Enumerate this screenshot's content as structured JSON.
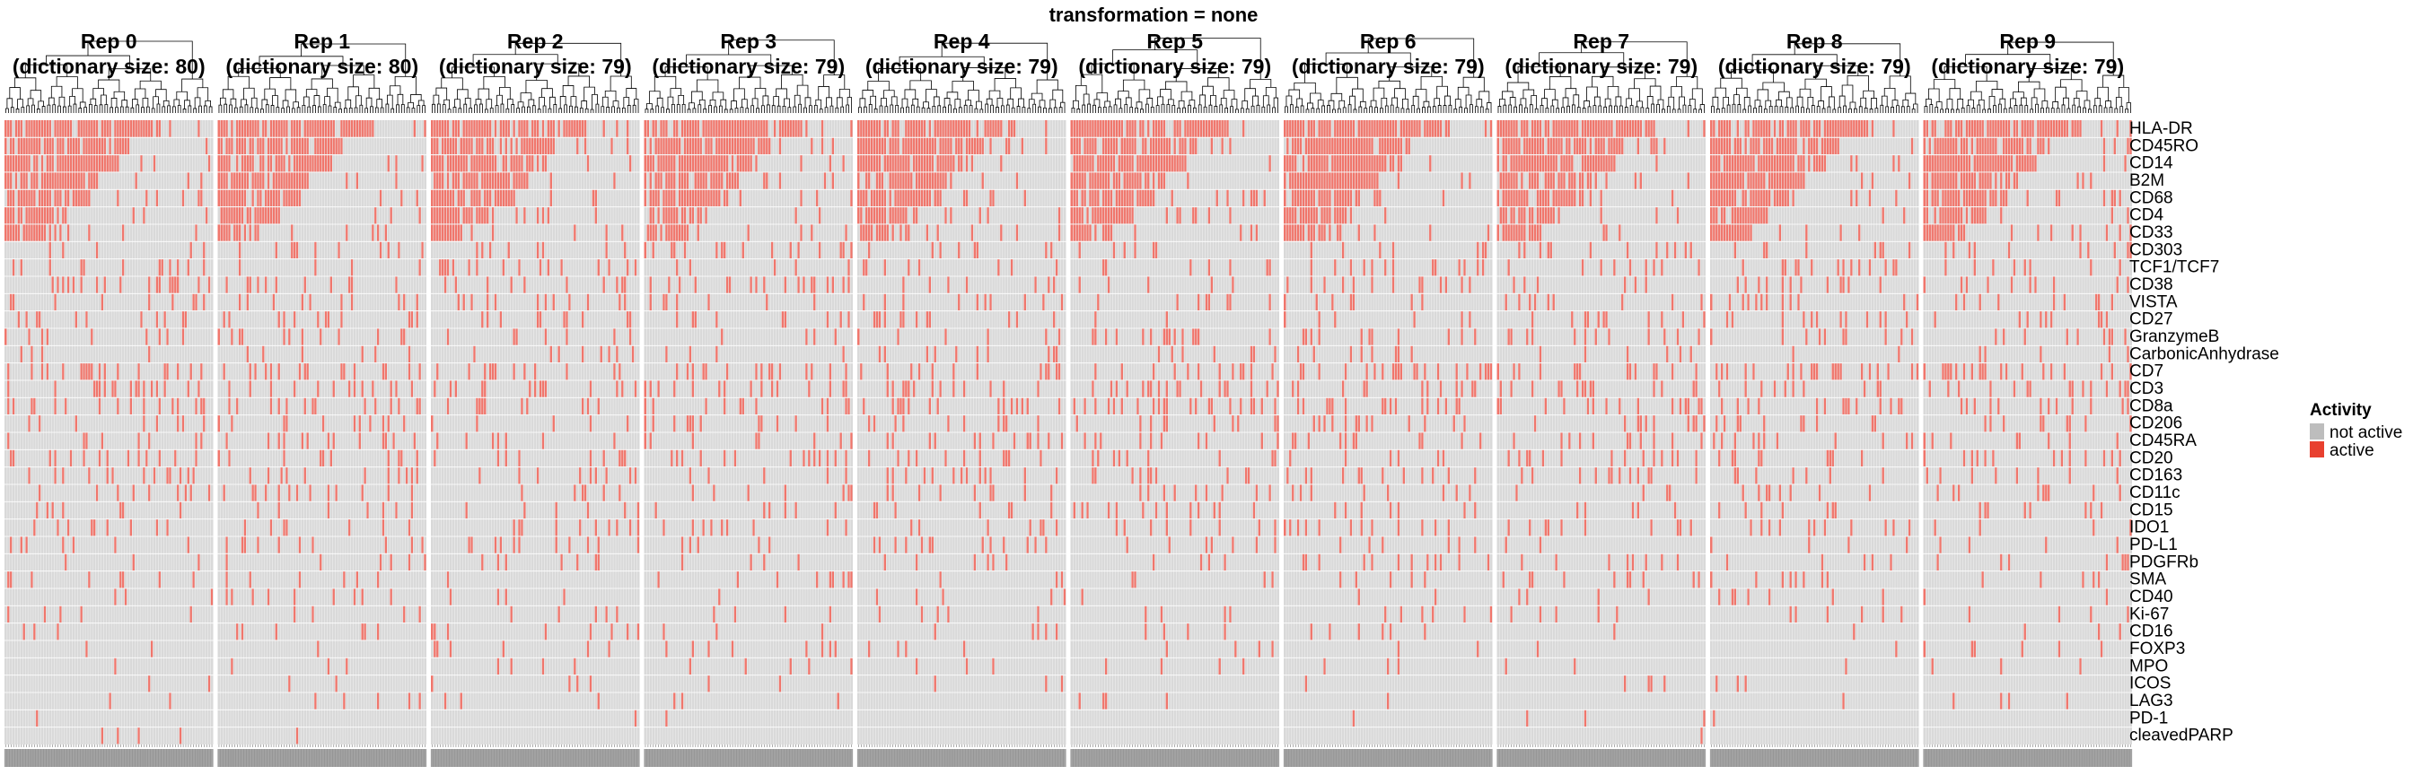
{
  "chart_data": {
    "type": "heatmap",
    "title": "transformation = none",
    "panels": [
      {
        "name": "Rep 0",
        "subtitle": "(dictionary size: 80)",
        "columns": 80
      },
      {
        "name": "Rep 1",
        "subtitle": "(dictionary size: 80)",
        "columns": 80
      },
      {
        "name": "Rep 2",
        "subtitle": "(dictionary size: 79)",
        "columns": 79
      },
      {
        "name": "Rep 3",
        "subtitle": "(dictionary size: 79)",
        "columns": 79
      },
      {
        "name": "Rep 4",
        "subtitle": "(dictionary size: 79)",
        "columns": 79
      },
      {
        "name": "Rep 5",
        "subtitle": "(dictionary size: 79)",
        "columns": 79
      },
      {
        "name": "Rep 6",
        "subtitle": "(dictionary size: 79)",
        "columns": 79
      },
      {
        "name": "Rep 7",
        "subtitle": "(dictionary size: 79)",
        "columns": 79
      },
      {
        "name": "Rep 8",
        "subtitle": "(dictionary size: 79)",
        "columns": 79
      },
      {
        "name": "Rep 9",
        "subtitle": "(dictionary size: 79)",
        "columns": 79
      }
    ],
    "rows": [
      "HLA-DR",
      "CD45RO",
      "CD14",
      "B2M",
      "CD68",
      "CD4",
      "CD33",
      "CD303",
      "TCF1/TCF7",
      "CD38",
      "VISTA",
      "CD27",
      "GranzymeB",
      "CarbonicAnhydrase",
      "CD7",
      "CD3",
      "CD8a",
      "CD206",
      "CD45RA",
      "CD20",
      "CD163",
      "CD11c",
      "CD15",
      "IDO1",
      "PD-L1",
      "PDGFRb",
      "SMA",
      "CD40",
      "Ki-67",
      "CD16",
      "FOXP3",
      "MPO",
      "ICOS",
      "LAG3",
      "PD-1",
      "cleavedPARP"
    ],
    "row_active_fraction": [
      0.75,
      0.6,
      0.55,
      0.45,
      0.4,
      0.3,
      0.2,
      0.1,
      0.1,
      0.1,
      0.1,
      0.1,
      0.12,
      0.06,
      0.14,
      0.13,
      0.13,
      0.1,
      0.12,
      0.11,
      0.1,
      0.09,
      0.08,
      0.09,
      0.07,
      0.06,
      0.05,
      0.04,
      0.05,
      0.04,
      0.03,
      0.03,
      0.02,
      0.02,
      0.01,
      0.01
    ],
    "legend": {
      "title": "Activity",
      "entries": [
        {
          "label": "not active",
          "color": "#d9d9d9"
        },
        {
          "label": "active",
          "color": "#f0766c"
        }
      ]
    },
    "legend_swatch_colors": {
      "not_active": "#bdbdbd",
      "active": "#e8402f"
    },
    "dendrogram": "top",
    "column_labels_note": "dense unreadable column labels along bottom"
  }
}
